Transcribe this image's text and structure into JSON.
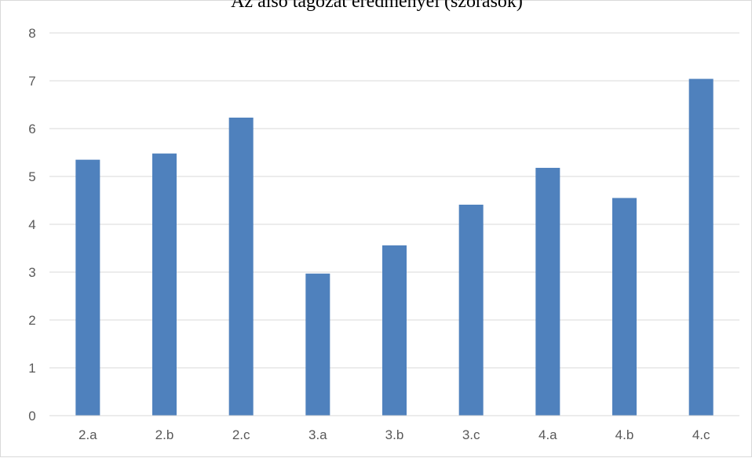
{
  "chart_data": {
    "type": "bar",
    "title": "Az alsó tagozat eredményei (szórások)",
    "xlabel": "",
    "ylabel": "",
    "categories": [
      "2.a",
      "2.b",
      "2.c",
      "3.a",
      "3.b",
      "3.c",
      "4.a",
      "4.b",
      "4.c"
    ],
    "series": [
      {
        "values": [
          5.35,
          5.48,
          6.23,
          2.97,
          3.56,
          4.41,
          5.18,
          4.55,
          7.04
        ]
      }
    ],
    "ylim": [
      0,
      8
    ],
    "yticks": [
      0,
      1,
      2,
      3,
      4,
      5,
      6,
      7,
      8
    ],
    "grid": true,
    "legend": "none",
    "colors": {
      "bar": "#4f81bd",
      "grid": "#d9d9d9",
      "axis": "#d9d9d9",
      "text": "#595959"
    }
  }
}
